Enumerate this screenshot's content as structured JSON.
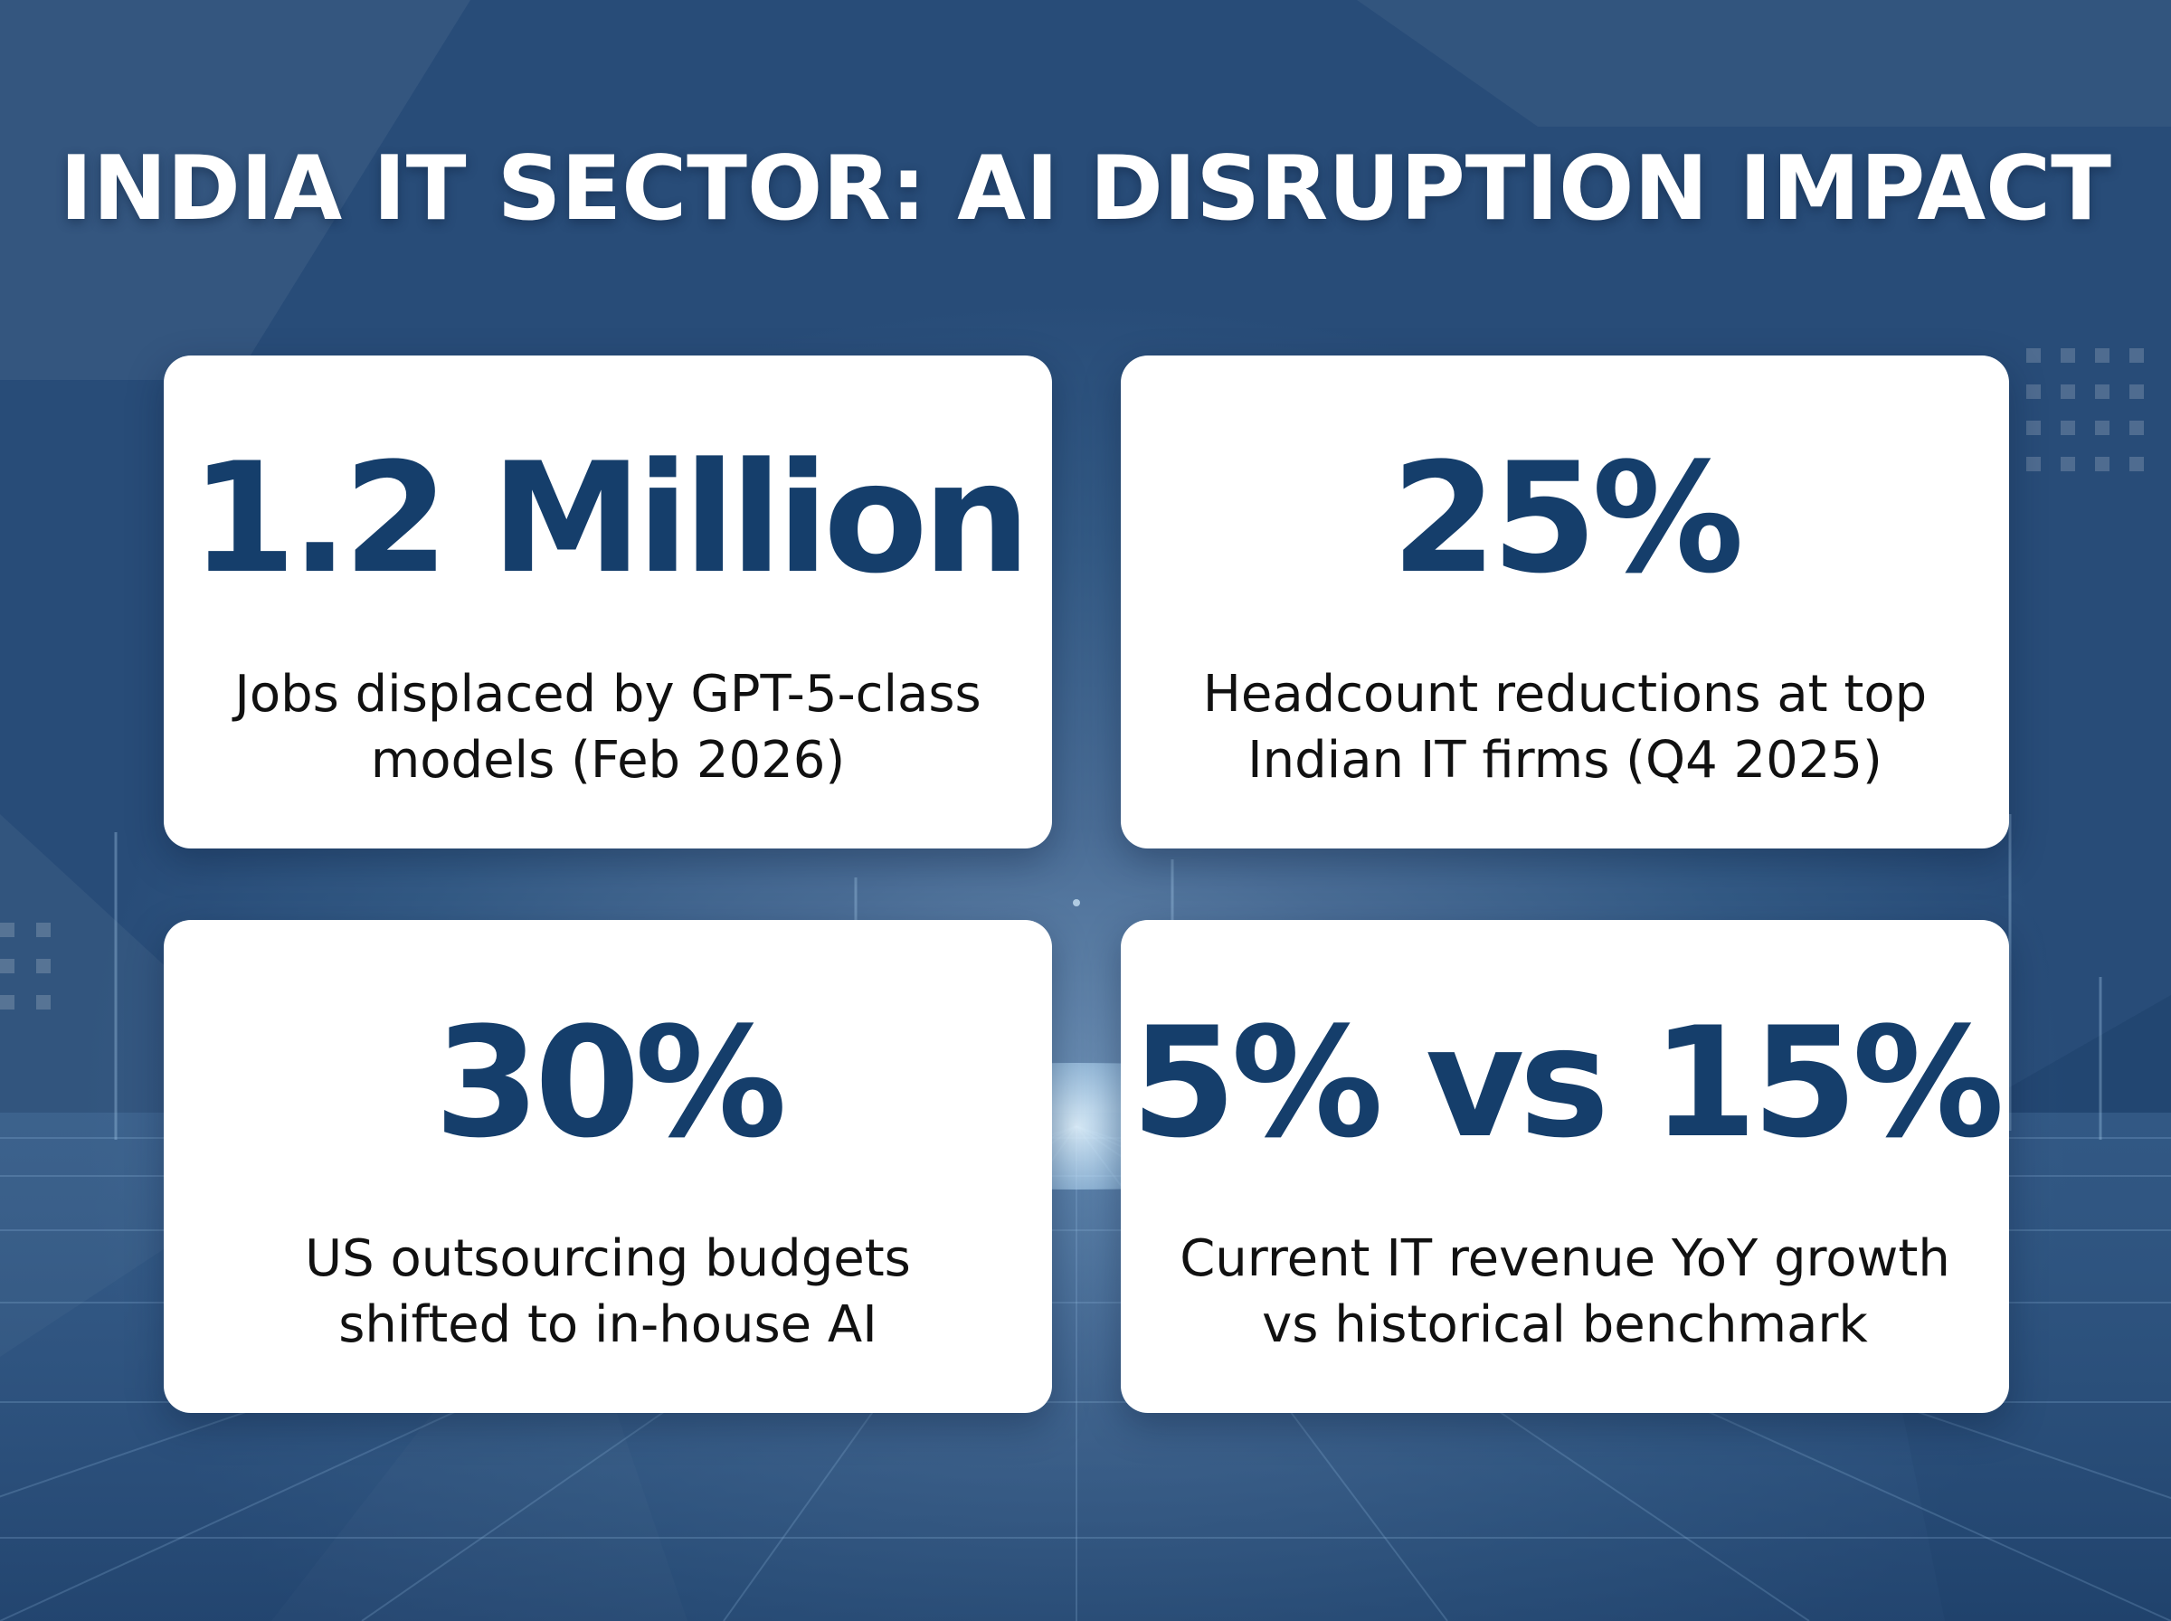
{
  "title": "INDIA IT SECTOR: AI DISRUPTION IMPACT",
  "stats": [
    {
      "value": "1.2 Million",
      "line1": "Jobs displaced by GPT-5-class",
      "line2": "models (Feb 2026)"
    },
    {
      "value": "25%",
      "line1": "Headcount reductions at top",
      "line2": "Indian IT firms (Q4 2025)"
    },
    {
      "value": "30%",
      "line1": "US outsourcing budgets",
      "line2": "shifted to in-house AI"
    },
    {
      "value": "5% vs 15%",
      "line1": "Current IT revenue YoY growth",
      "line2": "vs historical benchmark"
    }
  ],
  "colors": {
    "stat_text": "#153e6b",
    "background": "#335a85",
    "card": "#ffffff"
  }
}
